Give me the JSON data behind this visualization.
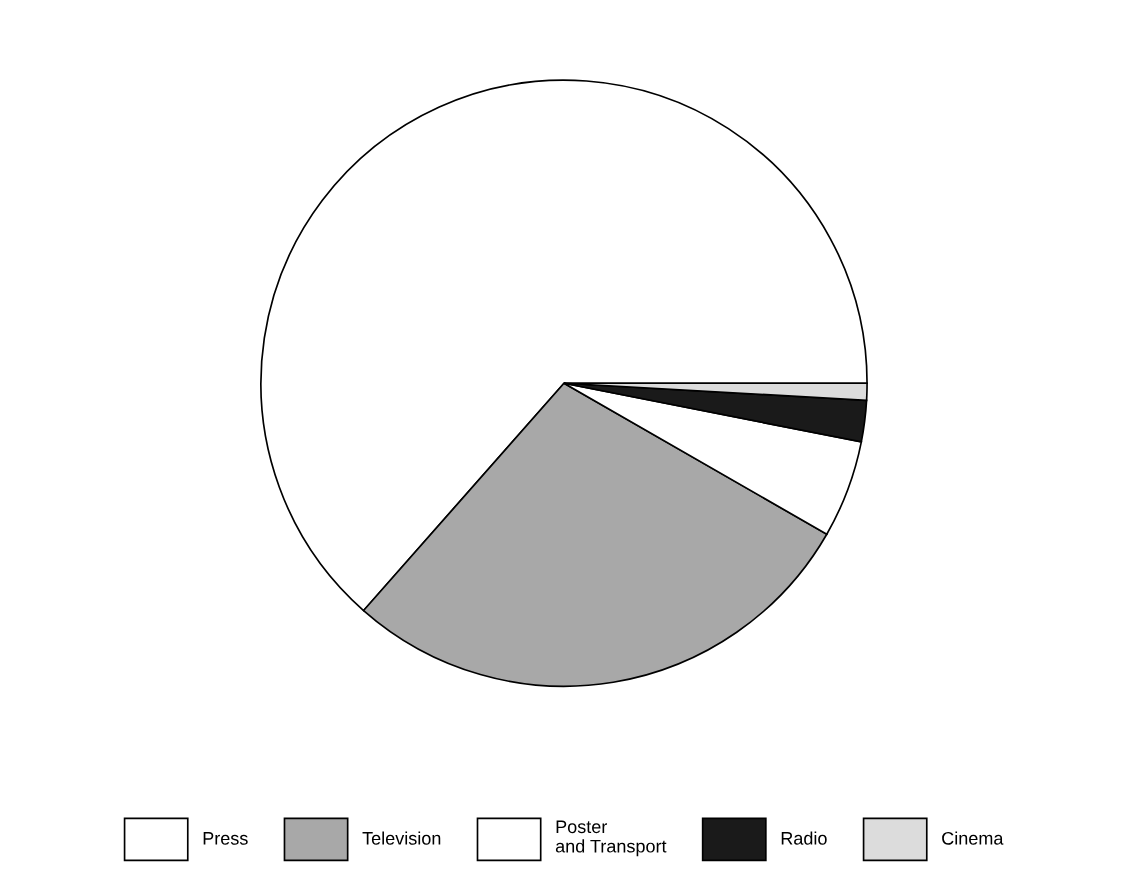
{
  "chart_data": {
    "type": "pie",
    "categories": [
      "Press",
      "Television",
      "Poster\nand Transport",
      "Radio",
      "Cinema"
    ],
    "values": [
      63.5,
      28.2,
      5.2,
      2.2,
      0.9
    ],
    "colors": [
      "#ffffff",
      "#a8a8a8",
      "#ffffff",
      "#1a1a1a",
      "#dcdcdc"
    ],
    "legend": "bottom"
  }
}
